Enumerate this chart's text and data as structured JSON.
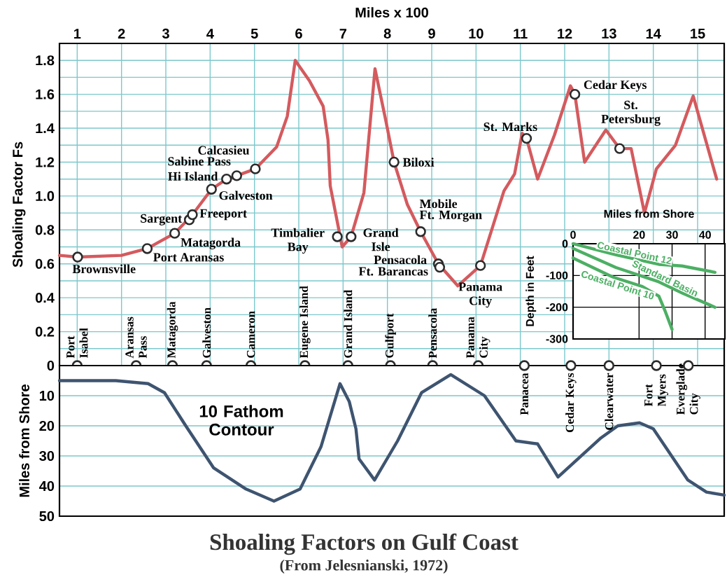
{
  "chart_data": [
    {
      "type": "line",
      "title": "Shoaling Factors on Gulf Coast",
      "subtitle": "(From Jelesnianski, 1972)",
      "xlabel": "Miles x 100",
      "ylabel": "Shoaling Factor Fs",
      "xlim": [
        0.6,
        15.6
      ],
      "xticks": [
        1,
        2,
        3,
        4,
        5,
        6,
        7,
        8,
        9,
        10,
        11,
        12,
        13,
        14,
        15
      ],
      "ylim": [
        0,
        1.9
      ],
      "yticks": [
        0,
        {
          "value": 0.1,
          "label": null
        },
        0.2,
        {
          "value": 0.3,
          "label": null
        },
        0.4,
        {
          "value": 0.5,
          "label": null
        },
        0.6,
        {
          "value": 0.7,
          "label": null
        },
        0.8,
        {
          "value": 0.9,
          "label": null
        },
        {
          "value": 1,
          "label": "1.0"
        },
        {
          "value": 1.1,
          "label": null
        },
        1.2,
        {
          "value": 1.3,
          "label": null
        },
        1.4,
        {
          "value": 1.5,
          "label": null
        },
        1.6,
        {
          "value": 1.7,
          "label": null
        },
        1.8
      ],
      "grid": true,
      "series": [
        {
          "type": "line",
          "color": "#d45a5e",
          "x": [
            0.6,
            1.01,
            2.0,
            2.58,
            3.2,
            3.6,
            4.03,
            4.37,
            4.6,
            5.02,
            5.5,
            5.74,
            5.92,
            6.24,
            6.55,
            6.66,
            6.71,
            6.98,
            7.18,
            7.47,
            7.72,
            7.96,
            8.15,
            8.45,
            8.75,
            9.15,
            9.59,
            10.1,
            10.63,
            10.87,
            11.04,
            11.14,
            11.39,
            11.77,
            12.13,
            12.23,
            12.45,
            12.93,
            13.24,
            13.5,
            13.8,
            14.07,
            14.5,
            14.9,
            15.43
          ],
          "values": [
            0.65,
            0.64,
            0.65,
            0.69,
            0.78,
            0.89,
            1.04,
            1.1,
            1.12,
            1.16,
            1.29,
            1.47,
            1.8,
            1.68,
            1.53,
            1.33,
            1.06,
            0.7,
            0.76,
            1.02,
            1.75,
            1.45,
            1.2,
            0.95,
            0.79,
            0.6,
            0.47,
            0.59,
            1.03,
            1.13,
            1.37,
            1.34,
            1.1,
            1.36,
            1.65,
            1.6,
            1.2,
            1.39,
            1.28,
            1.28,
            0.9,
            1.16,
            1.3,
            1.59,
            1.1
          ]
        },
        {
          "type": "scatter",
          "marker": "circle",
          "color": "#2b2b2b",
          "x": [
            1.01,
            2.58,
            3.2,
            3.53,
            3.6,
            4.03,
            4.37,
            4.6,
            5.02,
            6.87,
            7.18,
            8.15,
            8.75,
            9.15,
            9.18,
            10.1,
            11.14,
            12.23,
            13.24
          ],
          "values": [
            0.64,
            0.69,
            0.78,
            0.86,
            0.89,
            1.04,
            1.1,
            1.12,
            1.16,
            0.76,
            0.76,
            1.2,
            0.79,
            0.6,
            0.58,
            0.59,
            1.34,
            1.6,
            1.28
          ]
        },
        {
          "type": "scatter",
          "marker": "circle",
          "color": "#2b2b2b",
          "x": [
            1.0,
            2.33,
            3.15,
            3.92,
            4.92,
            6.14,
            7.11,
            8.07,
            9.02,
            10.05
          ],
          "values": [
            0,
            0,
            0,
            0,
            0,
            0,
            0,
            0,
            0,
            0
          ]
        }
      ],
      "annotations": [
        {
          "text": "Brownsville",
          "x": 1.01,
          "y": 0.64
        },
        {
          "text": "Port Aransas",
          "x": 2.58,
          "y": 0.69
        },
        {
          "text": "Matagorda",
          "x": 3.2,
          "y": 0.78
        },
        {
          "text": "Sargent",
          "x": 3.53,
          "y": 0.86
        },
        {
          "text": "Freeport",
          "x": 3.6,
          "y": 0.89
        },
        {
          "text": "Galveston",
          "x": 4.03,
          "y": 1.04
        },
        {
          "text": "Hi Island",
          "x": 4.37,
          "y": 1.1
        },
        {
          "text": "Sabine Pass",
          "x": 4.6,
          "y": 1.12
        },
        {
          "text": "Calcasieu",
          "x": 5.02,
          "y": 1.16
        },
        {
          "text": "Timbalier Bay",
          "x": 6.87,
          "y": 0.76
        },
        {
          "text": "Grand Isle",
          "x": 7.18,
          "y": 0.76
        },
        {
          "text": "Biloxi",
          "x": 8.15,
          "y": 1.2
        },
        {
          "text": "Mobile",
          "x": 8.75,
          "y": 0.79
        },
        {
          "text": "Ft. Morgan",
          "x": 8.75,
          "y": 0.79
        },
        {
          "text": "Pensacola",
          "x": 9.15,
          "y": 0.6
        },
        {
          "text": "Ft. Barancas",
          "x": 9.18,
          "y": 0.58
        },
        {
          "text": "Panama City",
          "x": 10.1,
          "y": 0.59
        },
        {
          "text": "St. Marks",
          "x": 11.14,
          "y": 1.34
        },
        {
          "text": "Cedar Keys",
          "x": 12.23,
          "y": 1.6
        },
        {
          "text": "St. Petersburg",
          "x": 13.24,
          "y": 1.28
        },
        {
          "text": "Port Isabel",
          "x": 1.0,
          "y": 0
        },
        {
          "text": "Aransas Pass",
          "x": 2.33,
          "y": 0
        },
        {
          "text": "Matagorda",
          "x": 3.15,
          "y": 0
        },
        {
          "text": "Galveston",
          "x": 3.92,
          "y": 0
        },
        {
          "text": "Cameron",
          "x": 4.92,
          "y": 0
        },
        {
          "text": "Eugene Island",
          "x": 6.14,
          "y": 0
        },
        {
          "text": "Grand Island",
          "x": 7.11,
          "y": 0
        },
        {
          "text": "Gulfport",
          "x": 8.07,
          "y": 0
        },
        {
          "text": "Pensacola",
          "x": 9.02,
          "y": 0
        },
        {
          "text": "Panama City",
          "x": 10.05,
          "y": 0
        }
      ]
    },
    {
      "type": "line",
      "ylabel": "Miles from Shore",
      "xlim": [
        0.6,
        15.6
      ],
      "ylim": [
        50,
        0
      ],
      "yticks": [
        10,
        20,
        30,
        40,
        50
      ],
      "grid": "y",
      "tick_labels": "y",
      "series": [
        {
          "type": "line",
          "color": "#3e5470",
          "x": [
            0.6,
            1.87,
            2.6,
            2.97,
            3.45,
            4.08,
            4.81,
            5.44,
            6.03,
            6.5,
            6.93,
            7.14,
            7.29,
            7.36,
            7.71,
            8.23,
            8.77,
            9.43,
            10.19,
            10.9,
            11.39,
            11.85,
            12.82,
            13.2,
            13.69,
            14.0,
            14.78,
            15.2,
            15.6
          ],
          "values": [
            5,
            5,
            6,
            9,
            20,
            34,
            41,
            45,
            41,
            27,
            6,
            12,
            21,
            31,
            38,
            25,
            9,
            3,
            10,
            25,
            26,
            37,
            24,
            20,
            19,
            21,
            38,
            42,
            43
          ]
        },
        {
          "type": "scatter",
          "marker": "circle",
          "color": "#2b2b2b",
          "x": [
            11.09,
            12.14,
            13.0,
            14.07,
            14.79
          ],
          "values": [
            0,
            0,
            0,
            0,
            0
          ]
        }
      ],
      "annotations": [
        "10 Fathom Contour",
        {
          "text": "Panacea",
          "x": 11.09,
          "y": 0
        },
        {
          "text": "Cedar Keys",
          "x": 12.14,
          "y": 0
        },
        {
          "text": "Clearwater",
          "x": 13.0,
          "y": 0
        },
        {
          "text": "Fort Myers",
          "x": 14.07,
          "y": 0
        },
        {
          "text": "Everglade City",
          "x": 14.79,
          "y": 0
        }
      ]
    },
    {
      "type": "line",
      "xlabel": "Miles from Shore",
      "ylabel": "Depth in Feet",
      "xlim": [
        0,
        46
      ],
      "xticks": [
        0,
        20,
        30,
        40
      ],
      "ylim": [
        -300,
        0
      ],
      "yticks": [
        -300,
        -200,
        -100,
        0
      ],
      "grid": true,
      "series": [
        {
          "name": "Coastal Point 12",
          "color": "#4caf64",
          "x": [
            0,
            13,
            26,
            33,
            43
          ],
          "values": [
            0,
            -35,
            -65,
            -70,
            -90
          ]
        },
        {
          "name": "Standard Basin",
          "color": "#4caf64",
          "x": [
            0,
            13,
            26,
            33,
            43
          ],
          "values": [
            -15,
            -75,
            -120,
            -155,
            -200
          ]
        },
        {
          "name": "Coastal Point 10",
          "color": "#4caf64",
          "x": [
            0,
            12,
            21,
            26,
            28,
            30
          ],
          "values": [
            -45,
            -105,
            -135,
            -165,
            -215,
            -270
          ]
        }
      ]
    }
  ]
}
